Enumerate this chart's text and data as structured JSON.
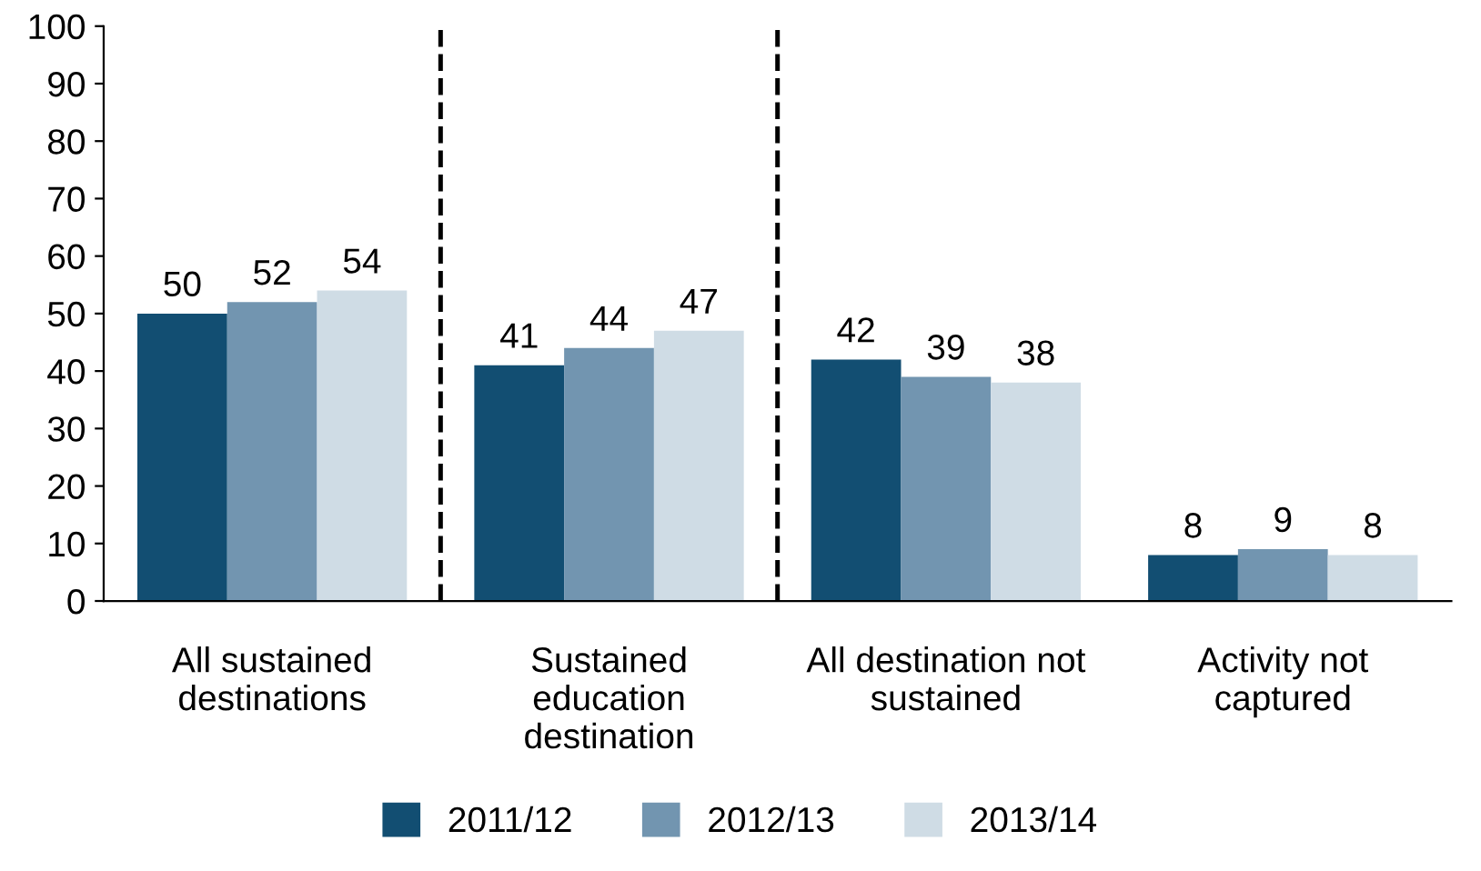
{
  "chart_data": {
    "type": "bar",
    "categories": [
      "All sustained\ndestinations",
      "Sustained\neducation\ndestination",
      "All destination not\nsustained",
      "Activity not\ncaptured"
    ],
    "series": [
      {
        "name": "2011/12",
        "color": "#124e72",
        "values": [
          50,
          41,
          42,
          8
        ]
      },
      {
        "name": "2012/13",
        "color": "#7295b0",
        "values": [
          52,
          44,
          39,
          9
        ]
      },
      {
        "name": "2013/14",
        "color": "#cfdce5",
        "values": [
          54,
          47,
          38,
          8
        ]
      }
    ],
    "ylim": [
      0,
      100
    ],
    "yticks": [
      0,
      10,
      20,
      30,
      40,
      50,
      60,
      70,
      80,
      90,
      100
    ],
    "data_labels": true,
    "grid": false,
    "legend": "bottom"
  }
}
